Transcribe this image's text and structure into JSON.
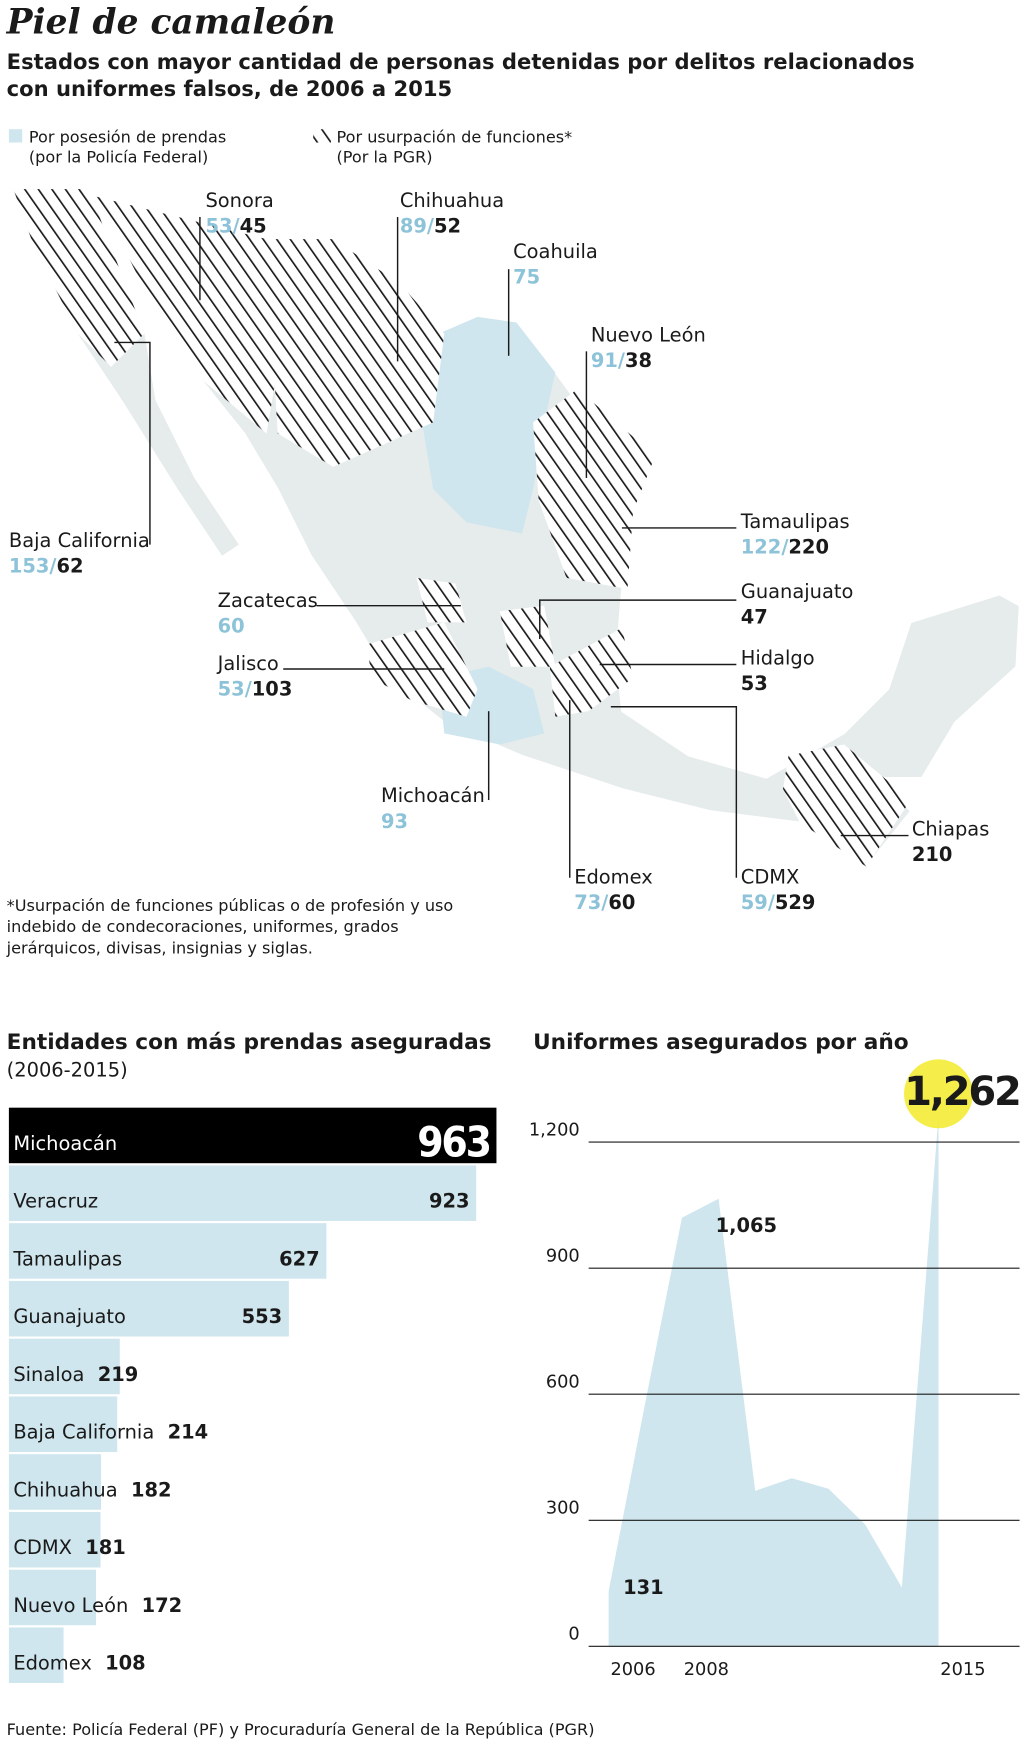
{
  "header": {
    "title": "Piel de camaleón",
    "subtitle": [
      "Estados con mayor cantidad de personas detenidas por delitos relacionados",
      "con uniformes falsos, de 2006 a 2015"
    ]
  },
  "legend": {
    "pf": [
      "Por posesión de prendas",
      "(por la Policía Federal)"
    ],
    "pgr": [
      "Por usurpación de funciones*",
      "(Por la PGR)"
    ],
    "pf_color": "#cfe6ee",
    "pgr_color": "#1a1a1a"
  },
  "map": {
    "separator": "/",
    "pf_color": "#8dc3d8",
    "pgr_color": "#1a1a1a",
    "states": [
      {
        "name": "Sonora",
        "pf": 53,
        "pgr": 45
      },
      {
        "name": "Chihuahua",
        "pf": 89,
        "pgr": 52
      },
      {
        "name": "Coahuila",
        "pf": 75,
        "pgr": null
      },
      {
        "name": "Nuevo León",
        "pf": 91,
        "pgr": 38
      },
      {
        "name": "Baja California",
        "pf": 153,
        "pgr": 62
      },
      {
        "name": "Tamaulipas",
        "pf": 122,
        "pgr": 220
      },
      {
        "name": "Zacatecas",
        "pf": 60,
        "pgr": null
      },
      {
        "name": "Guanajuato",
        "pf": null,
        "pgr": 47
      },
      {
        "name": "Jalisco",
        "pf": 53,
        "pgr": 103
      },
      {
        "name": "Hidalgo",
        "pf": null,
        "pgr": 53
      },
      {
        "name": "Michoacán",
        "pf": 93,
        "pgr": null
      },
      {
        "name": "Chiapas",
        "pf": null,
        "pgr": 210
      },
      {
        "name": "Edomex",
        "pf": 73,
        "pgr": 60
      },
      {
        "name": "CDMX",
        "pf": 59,
        "pgr": 529
      }
    ],
    "footnote": [
      "*Usurpación de funciones públicas o de profesión y uso",
      "indebido de condecoraciones, uniformes, grados",
      "jerárquicos, divisas, insignias y siglas."
    ]
  },
  "chart_data": [
    {
      "type": "hbar",
      "title": "Entidades con más prendas aseguradas",
      "subtitle": "(2006-2015)",
      "categories": [
        "Michoacán",
        "Veracruz",
        "Tamaulipas",
        "Guanajuato",
        "Sinaloa",
        "Baja California",
        "Chihuahua",
        "CDMX",
        "Nuevo León",
        "Edomex"
      ],
      "values": [
        963,
        923,
        627,
        553,
        219,
        214,
        182,
        181,
        172,
        108
      ],
      "colors": [
        "#000000",
        "#cfe6ee",
        "#cfe6ee",
        "#cfe6ee",
        "#cfe6ee",
        "#cfe6ee",
        "#cfe6ee",
        "#cfe6ee",
        "#cfe6ee",
        "#cfe6ee"
      ],
      "xlim": [
        0,
        963
      ]
    },
    {
      "type": "area",
      "title": "Uniformes asegurados por año",
      "categories": [
        "2006",
        null,
        "2008",
        null,
        null,
        null,
        null,
        null,
        null,
        "2015"
      ],
      "values": [
        131,
        580,
        1020,
        1065,
        370,
        400,
        375,
        290,
        140,
        1262
      ],
      "value_labels": [
        "131",
        null,
        null,
        "1,065",
        null,
        null,
        null,
        null,
        null,
        "1,262"
      ],
      "color": "#cfe6ee",
      "ylim": [
        0,
        1340
      ],
      "yticks": [
        0,
        300,
        600,
        900,
        {
          "value": 1200,
          "label": "1,200"
        }
      ],
      "grid": true
    }
  ],
  "source": "Fuente: Policía Federal (PF) y Procuraduría General de la República (PGR)"
}
